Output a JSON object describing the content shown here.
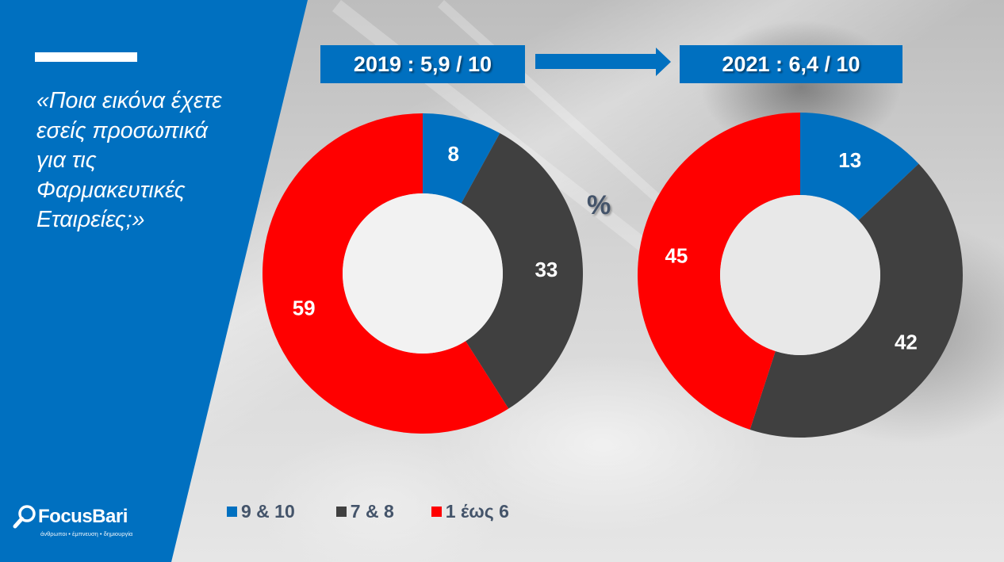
{
  "question": {
    "lines": [
      "«Ποια εικόνα έχετε",
      "εσείς προσωπικά",
      "για τις",
      "Φαρμακευτικές",
      "Εταιρείες;»"
    ]
  },
  "logo": {
    "brand": "FocusBari",
    "tagline": "άνθρωποι • έμπνευση • δημιουργία",
    "icon": "magnifier-icon"
  },
  "scores": {
    "before": "2019 : 5,9 / 10",
    "after": "2021 : 6,4 / 10",
    "arrow_icon": "arrow-right-icon"
  },
  "unit_label": "%",
  "colors": {
    "blue": "#0070c0",
    "dark": "#404040",
    "red": "#ff0000",
    "legend_text": "#44546a"
  },
  "chart_data": [
    {
      "type": "pie",
      "variant": "donut",
      "title": "2019",
      "unit": "%",
      "categories": [
        "9 & 10",
        "7 & 8",
        "1 έως 6"
      ],
      "values": [
        8,
        33,
        59
      ],
      "colors": [
        "#0070c0",
        "#404040",
        "#ff0000"
      ],
      "start": "12 o'clock, clockwise",
      "legend": "bottom"
    },
    {
      "type": "pie",
      "variant": "donut",
      "title": "2021",
      "unit": "%",
      "categories": [
        "9 & 10",
        "7 & 8",
        "1 έως 6"
      ],
      "values": [
        13,
        42,
        45
      ],
      "colors": [
        "#0070c0",
        "#404040",
        "#ff0000"
      ],
      "start": "12 o'clock, clockwise",
      "legend": "bottom"
    }
  ],
  "legend": [
    {
      "label": "9 & 10",
      "color": "#0070c0"
    },
    {
      "label": "7 & 8",
      "color": "#404040"
    },
    {
      "label": "1 έως 6",
      "color": "#ff0000"
    }
  ]
}
